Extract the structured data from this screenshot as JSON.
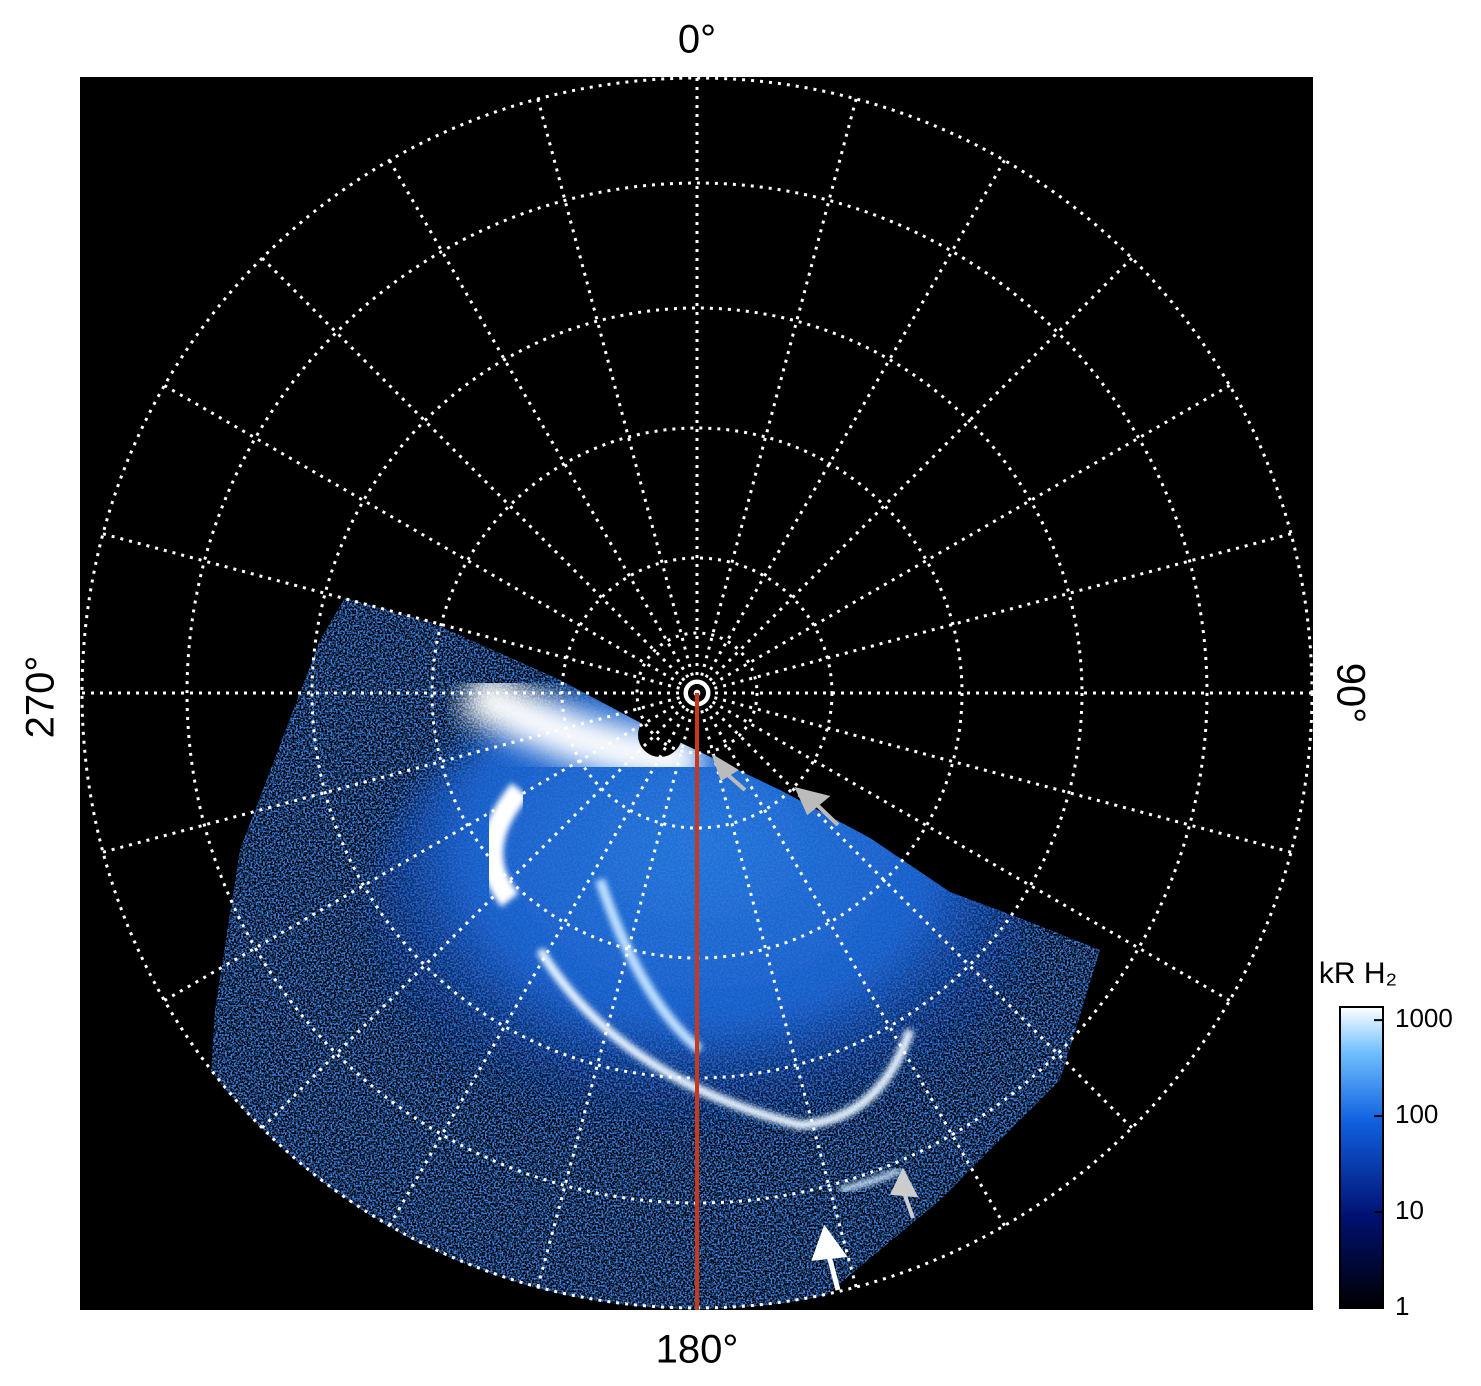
{
  "chart_data": {
    "type": "polar-image",
    "angle_labels": [
      "0°",
      "90°",
      "180°",
      "270°"
    ],
    "colorbar": {
      "label": "kR H₂",
      "lim": [
        1,
        1370
      ],
      "ticks": [
        1,
        10,
        100,
        1000
      ],
      "log": true
    }
  }
}
